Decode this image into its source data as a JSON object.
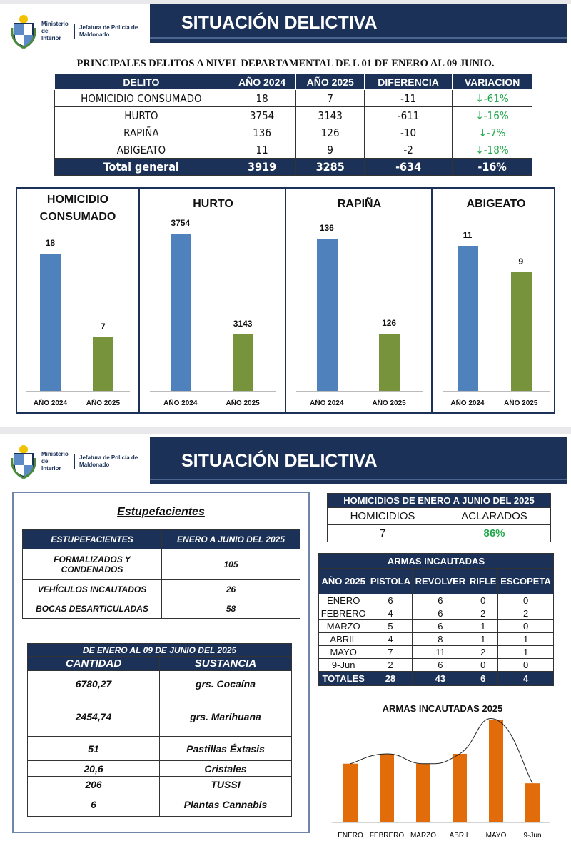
{
  "header": {
    "ministry": "Ministerio del Interior",
    "jefatura": "Jefatura de Policía de Maldonado",
    "title": "SITUACIÓN DELICTIVA"
  },
  "page1": {
    "subtitle": "PRINCIPALES  DELITOS A NIVEL DEPARTAMENTAL DE L 01 DE ENERO AL 09 JUNIO.",
    "table": {
      "columns": [
        "DELITO",
        "AÑO 2024",
        "AÑO 2025",
        "DIFERENCIA",
        "VARIACION"
      ],
      "rows": [
        [
          "HOMICIDIO CONSUMADO",
          "18",
          "7",
          "-11",
          "↓-61%"
        ],
        [
          "HURTO",
          "3754",
          "3143",
          "-611",
          "↓-16%"
        ],
        [
          "RAPIÑA",
          "136",
          "126",
          "-10",
          "↓-7%"
        ],
        [
          "ABIGEATO",
          "11",
          "9",
          "-2",
          "↓-18%"
        ]
      ],
      "total": [
        "Total general",
        "3919",
        "3285",
        "-634",
        "-16%"
      ]
    }
  },
  "chart_data": [
    {
      "type": "bar",
      "title": "HOMICIDIO CONSUMADO",
      "categories": [
        "AÑO 2024",
        "AÑO 2025"
      ],
      "values": [
        18,
        7
      ],
      "ylim": [
        0,
        22.5
      ],
      "colors": [
        "#4f81bd",
        "#77933c"
      ]
    },
    {
      "type": "bar",
      "title": "HURTO",
      "categories": [
        "AÑO 2024",
        "AÑO 2025"
      ],
      "values": [
        3754,
        3143
      ],
      "ylim": [
        2800,
        3840
      ],
      "colors": [
        "#4f81bd",
        "#77933c"
      ]
    },
    {
      "type": "bar",
      "title": "RAPIÑA",
      "categories": [
        "AÑO 2024",
        "AÑO 2025"
      ],
      "values": [
        136,
        126
      ],
      "ylim": [
        120,
        138
      ],
      "colors": [
        "#4f81bd",
        "#77933c"
      ]
    },
    {
      "type": "bar",
      "title": "ABIGEATO",
      "categories": [
        "AÑO 2024",
        "AÑO 2025"
      ],
      "values": [
        11,
        9
      ],
      "ylim": [
        0,
        13
      ],
      "colors": [
        "#4f81bd",
        "#77933c"
      ]
    },
    {
      "type": "bar",
      "title": "ARMAS INCAUTADAS 2025",
      "categories": [
        "ENERO",
        "FEBRERO",
        "MARZO",
        "ABRIL",
        "MAYO",
        "9-Jun"
      ],
      "values": [
        12,
        14,
        12,
        14,
        21,
        8
      ],
      "ylim": [
        0,
        21
      ],
      "colors": [
        "#e36c0a"
      ],
      "trendline": "smooth"
    }
  ],
  "page2": {
    "estup_title": "Estupefacientes",
    "estup": {
      "columns": [
        "ESTUPEFACIENTES",
        "ENERO A JUNIO DEL 2025"
      ],
      "rows": [
        [
          "FORMALIZADOS Y CONDENADOS",
          "105"
        ],
        [
          "VEHÍCULOS INCAUTADOS",
          "26"
        ],
        [
          "BOCAS DESARTICULADAS",
          "58"
        ]
      ]
    },
    "sust": {
      "title": "DE ENERO AL 09 DE JUNIO  DEL   2025",
      "columns": [
        "CANTIDAD",
        "SUSTANCIA"
      ],
      "rows": [
        [
          "6780,27",
          "grs. Cocaína"
        ],
        [
          "2454,74",
          "grs. Marihuana"
        ],
        [
          "51",
          "Pastillas Éxtasis"
        ],
        [
          "20,6",
          "Cristales"
        ],
        [
          "206",
          "TUSSI"
        ],
        [
          "6",
          "Plantas Cannabis"
        ]
      ]
    },
    "homic": {
      "title": "HOMICIDIOS  DE ENERO  A  JUNIO DEL 2025",
      "columns": [
        "HOMICIDIOS",
        "ACLARADOS"
      ],
      "values": [
        "7",
        "86%"
      ]
    },
    "armas": {
      "title": "ARMAS INCAUTADAS",
      "columns": [
        "AÑO 2025",
        "PISTOLA",
        "REVOLVER",
        "RIFLE",
        "ESCOPETA"
      ],
      "rows": [
        [
          "ENERO",
          "6",
          "6",
          "0",
          "0"
        ],
        [
          "FEBRERO",
          "4",
          "6",
          "2",
          "2"
        ],
        [
          "MARZO",
          "5",
          "6",
          "1",
          "0"
        ],
        [
          "ABRIL",
          "4",
          "8",
          "1",
          "1"
        ],
        [
          "MAYO",
          "7",
          "11",
          "2",
          "1"
        ],
        [
          "9-Jun",
          "2",
          "6",
          "0",
          "0"
        ]
      ],
      "total": [
        "TOTALES",
        "28",
        "43",
        "6",
        "4"
      ]
    }
  },
  "colors": {
    "navy": "#1b3157",
    "green_text": "#21a84a"
  }
}
